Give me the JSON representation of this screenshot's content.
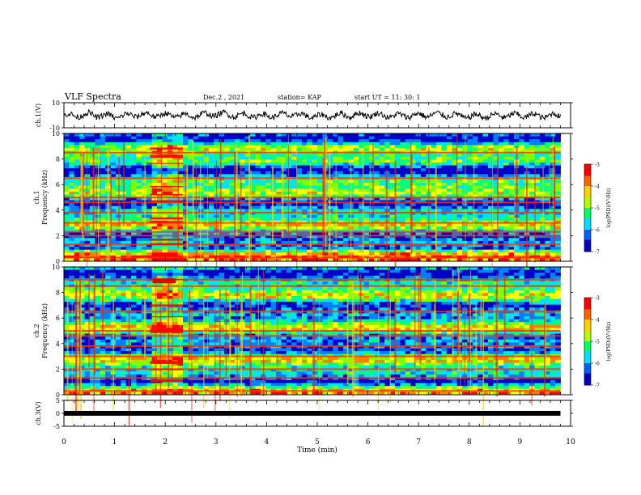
{
  "header": {
    "title": "VLF Spectra",
    "date": "Dec.2 , 2021",
    "station": "station= KAP",
    "start": "start UT = 11: 30: 1"
  },
  "chart_data": [
    {
      "type": "line",
      "panel": "ch1-waveform",
      "ylabel": "ch.1(V)",
      "ylim": [
        -10,
        10
      ],
      "yticks": [
        "10",
        "-10"
      ],
      "x": [
        0,
        0.5,
        1,
        1.5,
        2,
        2.5,
        3,
        3.5,
        4,
        4.5,
        5,
        5.5,
        6,
        6.5,
        7,
        7.5,
        8,
        8.5,
        9,
        9.5,
        9.8
      ],
      "values": [
        -0.5,
        0.5,
        -1,
        0.5,
        0,
        -0.5,
        1,
        0,
        -0.5,
        0.5,
        -1,
        0,
        0.5,
        -0.5,
        0,
        0.5,
        -1,
        -0.5,
        0,
        -0.5,
        0
      ]
    },
    {
      "type": "heatmap",
      "panel": "ch1-spectrogram",
      "ylabel": "ch.1\nFrequency (kHz)",
      "ylim": [
        0,
        10
      ],
      "yticks": [
        "0",
        "2",
        "4",
        "6",
        "8",
        "10"
      ],
      "colorbar": {
        "label": "log(PSD)(V²/Hz)",
        "range": [
          -7,
          -3
        ],
        "ticks": [
          "-3",
          "-4",
          "-5",
          "-6",
          "-7"
        ]
      },
      "xlim": [
        0,
        9.8
      ],
      "strong_lines_khz": [
        0.3,
        1.3,
        2.0,
        2.3,
        3.0,
        3.8,
        4.6,
        5.0,
        6.5,
        8.5
      ],
      "burst_interval_min": [
        1.7,
        2.35
      ]
    },
    {
      "type": "heatmap",
      "panel": "ch2-spectrogram",
      "ylabel": "ch.2\nFrequency (kHz)",
      "ylim": [
        0,
        10
      ],
      "yticks": [
        "0",
        "2",
        "4",
        "6",
        "8",
        "10"
      ],
      "colorbar": {
        "label": "log(PSD)(V²/Hz)",
        "range": [
          -7,
          -3
        ],
        "ticks": [
          "-3",
          "-4",
          "-5",
          "-6",
          "-7"
        ]
      },
      "xlim": [
        0,
        9.8
      ],
      "strong_lines_khz": [
        0.3,
        1.3,
        2.0,
        3.0,
        3.8,
        4.6,
        5.0,
        6.5,
        8.5,
        9.0
      ],
      "burst_interval_min": [
        1.7,
        2.35
      ]
    },
    {
      "type": "line",
      "panel": "ch3-waveform",
      "ylabel": "ch.3(V)",
      "ylim": [
        -5,
        5
      ],
      "yticks": [
        "5",
        "0",
        "-5"
      ],
      "x": [
        0,
        9.8
      ],
      "values": [
        0,
        0
      ]
    }
  ],
  "xaxis": {
    "label": "Time (min)",
    "ticks": [
      "0",
      "1",
      "2",
      "3",
      "4",
      "5",
      "6",
      "7",
      "8",
      "9",
      "10"
    ],
    "xlim": [
      0,
      10
    ]
  },
  "colors": {
    "waveform": "#000000",
    "cmap": [
      "#0000c8",
      "#0080ff",
      "#00e0ff",
      "#00ff80",
      "#80ff00",
      "#ffff00",
      "#ff8000",
      "#ff0000"
    ]
  }
}
